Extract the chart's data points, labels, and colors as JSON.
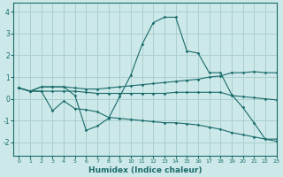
{
  "background_color": "#cce8e8",
  "grid_color": "#aacfcf",
  "line_color": "#1a6b6b",
  "xlabel": "Humidex (Indice chaleur)",
  "xlim": [
    -0.5,
    23
  ],
  "ylim": [
    -2.6,
    4.4
  ],
  "yticks": [
    -2,
    -1,
    0,
    1,
    2,
    3,
    4
  ],
  "xticks": [
    0,
    1,
    2,
    3,
    4,
    5,
    6,
    7,
    8,
    9,
    10,
    11,
    12,
    13,
    14,
    15,
    16,
    17,
    18,
    19,
    20,
    21,
    22,
    23
  ],
  "series": [
    {
      "x": [
        0,
        1,
        2,
        3,
        4,
        5,
        6,
        7,
        8,
        9,
        10,
        11,
        12,
        13,
        14,
        15,
        16,
        17,
        18,
        19,
        20,
        21,
        22,
        23
      ],
      "y": [
        0.5,
        0.35,
        0.55,
        0.55,
        0.55,
        0.15,
        -1.45,
        -1.25,
        -0.9,
        0.1,
        1.1,
        2.5,
        3.5,
        3.75,
        3.75,
        2.2,
        2.1,
        1.2,
        1.2,
        0.2,
        -0.4,
        -1.1,
        -1.85,
        -1.85
      ]
    },
    {
      "x": [
        0,
        1,
        2,
        3,
        4,
        5,
        6,
        7,
        8,
        9,
        10,
        11,
        12,
        13,
        14,
        15,
        16,
        17,
        18,
        19,
        20,
        21,
        22,
        23
      ],
      "y": [
        0.5,
        0.35,
        0.35,
        0.35,
        0.35,
        0.35,
        0.3,
        0.25,
        0.25,
        0.25,
        0.25,
        0.25,
        0.25,
        0.25,
        0.3,
        0.3,
        0.3,
        0.3,
        0.3,
        0.15,
        0.1,
        0.05,
        0.0,
        -0.05
      ]
    },
    {
      "x": [
        0,
        1,
        2,
        3,
        4,
        5,
        6,
        7,
        8,
        9,
        10,
        11,
        12,
        13,
        14,
        15,
        16,
        17,
        18,
        19,
        20,
        21,
        22,
        23
      ],
      "y": [
        0.5,
        0.35,
        0.55,
        0.55,
        0.55,
        0.5,
        0.45,
        0.45,
        0.5,
        0.55,
        0.6,
        0.65,
        0.7,
        0.75,
        0.8,
        0.85,
        0.9,
        1.0,
        1.05,
        1.2,
        1.2,
        1.25,
        1.2,
        1.2
      ]
    },
    {
      "x": [
        0,
        1,
        2,
        3,
        4,
        5,
        6,
        7,
        8,
        9,
        10,
        11,
        12,
        13,
        14,
        15,
        16,
        17,
        18,
        19,
        20,
        21,
        22,
        23
      ],
      "y": [
        0.5,
        0.35,
        0.35,
        -0.55,
        -0.1,
        -0.45,
        -0.5,
        -0.6,
        -0.85,
        -0.9,
        -0.95,
        -1.0,
        -1.05,
        -1.1,
        -1.1,
        -1.15,
        -1.2,
        -1.3,
        -1.4,
        -1.55,
        -1.65,
        -1.75,
        -1.85,
        -1.95
      ]
    }
  ]
}
